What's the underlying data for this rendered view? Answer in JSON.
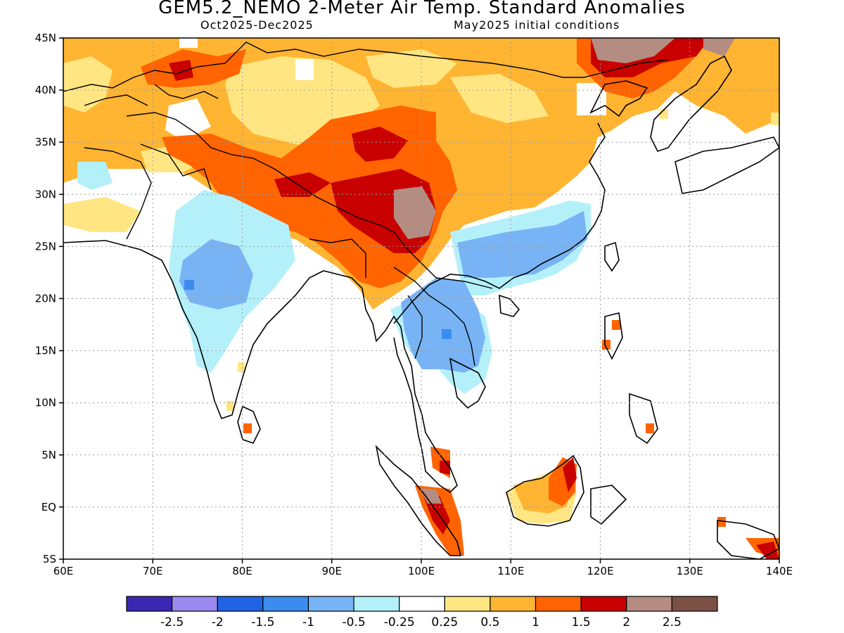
{
  "title": "GEM5.2_NEMO 2-Meter Air Temp. Standard Anomalies",
  "period": "Oct2025-Dec2025",
  "init": "May2025 initial conditions",
  "lat_labels": [
    "45N",
    "40N",
    "35N",
    "30N",
    "25N",
    "20N",
    "15N",
    "10N",
    "5N",
    "EQ",
    "5S"
  ],
  "lon_labels": [
    "60E",
    "70E",
    "80E",
    "90E",
    "100E",
    "110E",
    "120E",
    "130E",
    "140E"
  ],
  "colorbar": {
    "colors": [
      "#3a28b4",
      "#9a8af0",
      "#2064e6",
      "#3c8cf0",
      "#78b4f5",
      "#b4f0fa",
      "#ffffff",
      "#ffe682",
      "#ffb432",
      "#ff6400",
      "#c80000",
      "#b48c82",
      "#7d5046"
    ],
    "labels": [
      "-2.5",
      "-2",
      "-1.5",
      "-1",
      "-0.5",
      "-0.25",
      "0.25",
      "0.5",
      "1",
      "1.5",
      "2",
      "2.5"
    ]
  },
  "map_extent": {
    "lon_min": 60,
    "lon_max": 140,
    "lat_min": -5,
    "lat_max": 45
  }
}
